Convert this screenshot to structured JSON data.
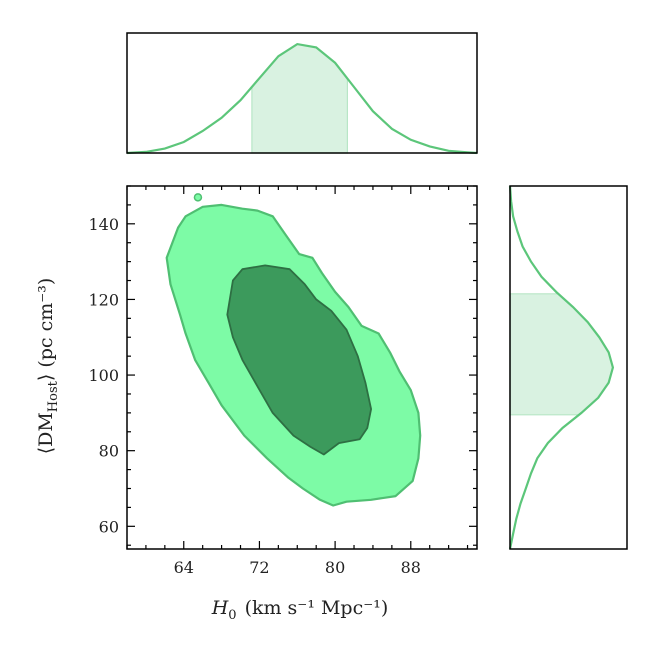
{
  "chart_data": {
    "type": "corner",
    "joint": {
      "type": "contour",
      "x_range": [
        58,
        95
      ],
      "y_range": [
        54,
        150
      ],
      "xticks": [
        64,
        72,
        80,
        88
      ],
      "yticks": [
        60,
        80,
        100,
        120,
        140
      ],
      "xlabel": {
        "symbol": "H",
        "sub": "0",
        "units": "(km s⁻¹ Mpc⁻¹)"
      },
      "ylabel": {
        "symbol": "⟨DM",
        "sub": "Host",
        "units": "⟩ (pc cm⁻³)"
      },
      "colors": {
        "outer": "#7dfba6",
        "outer_edge": "#4fbf72",
        "inner": "#3c9a5c",
        "inner_edge": "#2e6f43"
      },
      "outer_contour": [
        [
          63.4,
          139
        ],
        [
          64.2,
          142
        ],
        [
          66.0,
          144.5
        ],
        [
          68.0,
          145
        ],
        [
          70.2,
          144
        ],
        [
          71.8,
          143.5
        ],
        [
          73.4,
          142
        ],
        [
          74.8,
          137
        ],
        [
          76.2,
          132
        ],
        [
          77.6,
          131
        ],
        [
          78.6,
          127
        ],
        [
          80.0,
          122
        ],
        [
          81.4,
          118
        ],
        [
          82.8,
          113
        ],
        [
          84.6,
          111
        ],
        [
          85.8,
          106
        ],
        [
          86.8,
          101
        ],
        [
          88.0,
          96
        ],
        [
          88.8,
          90
        ],
        [
          89.0,
          84
        ],
        [
          88.8,
          78
        ],
        [
          88.2,
          72
        ],
        [
          86.4,
          68
        ],
        [
          83.8,
          67
        ],
        [
          81.2,
          66.5
        ],
        [
          79.8,
          65.5
        ],
        [
          78.4,
          67
        ],
        [
          76.6,
          70
        ],
        [
          75.0,
          73
        ],
        [
          72.8,
          78
        ],
        [
          70.4,
          84
        ],
        [
          68.0,
          92
        ],
        [
          66.6,
          98
        ],
        [
          65.2,
          104
        ],
        [
          64.2,
          111
        ],
        [
          63.6,
          116
        ],
        [
          62.6,
          124
        ],
        [
          62.2,
          131
        ]
      ],
      "inner_contour": [
        [
          69.2,
          125
        ],
        [
          70.2,
          128
        ],
        [
          72.6,
          129
        ],
        [
          75.2,
          128
        ],
        [
          76.8,
          124
        ],
        [
          78.0,
          120
        ],
        [
          79.6,
          117
        ],
        [
          81.2,
          112
        ],
        [
          82.4,
          105
        ],
        [
          83.2,
          98
        ],
        [
          83.8,
          91
        ],
        [
          83.4,
          86
        ],
        [
          82.6,
          83
        ],
        [
          80.4,
          82
        ],
        [
          78.8,
          79
        ],
        [
          77.4,
          81
        ],
        [
          75.6,
          84
        ],
        [
          73.4,
          90
        ],
        [
          71.8,
          97
        ],
        [
          70.2,
          104
        ],
        [
          69.2,
          110
        ],
        [
          68.6,
          116
        ]
      ],
      "outlier_point": [
        65.5,
        147
      ]
    },
    "x_marginal": {
      "type": "density",
      "color": "#5cc67a",
      "fill": "#d9f2e1",
      "x": [
        58,
        60,
        62,
        64,
        66,
        68,
        70,
        72,
        74,
        76,
        78,
        80,
        82,
        84,
        86,
        88,
        90,
        92,
        94,
        95
      ],
      "y": [
        0.0,
        0.01,
        0.04,
        0.1,
        0.2,
        0.32,
        0.48,
        0.68,
        0.88,
        0.99,
        0.96,
        0.82,
        0.6,
        0.38,
        0.22,
        0.12,
        0.06,
        0.02,
        0.005,
        0.0
      ],
      "interval": [
        71.2,
        81.3
      ]
    },
    "y_marginal": {
      "type": "density",
      "color": "#5cc67a",
      "fill": "#d9f2e1",
      "y": [
        54,
        58,
        62,
        66,
        70,
        74,
        78,
        82,
        86,
        90,
        94,
        98,
        102,
        106,
        110,
        114,
        118,
        122,
        126,
        130,
        134,
        138,
        142,
        146,
        150
      ],
      "x": [
        0.0,
        0.03,
        0.06,
        0.1,
        0.15,
        0.2,
        0.26,
        0.36,
        0.5,
        0.68,
        0.84,
        0.94,
        0.98,
        0.94,
        0.85,
        0.74,
        0.6,
        0.44,
        0.3,
        0.2,
        0.12,
        0.07,
        0.03,
        0.01,
        0.0
      ],
      "interval": [
        89.5,
        121.5
      ]
    }
  }
}
